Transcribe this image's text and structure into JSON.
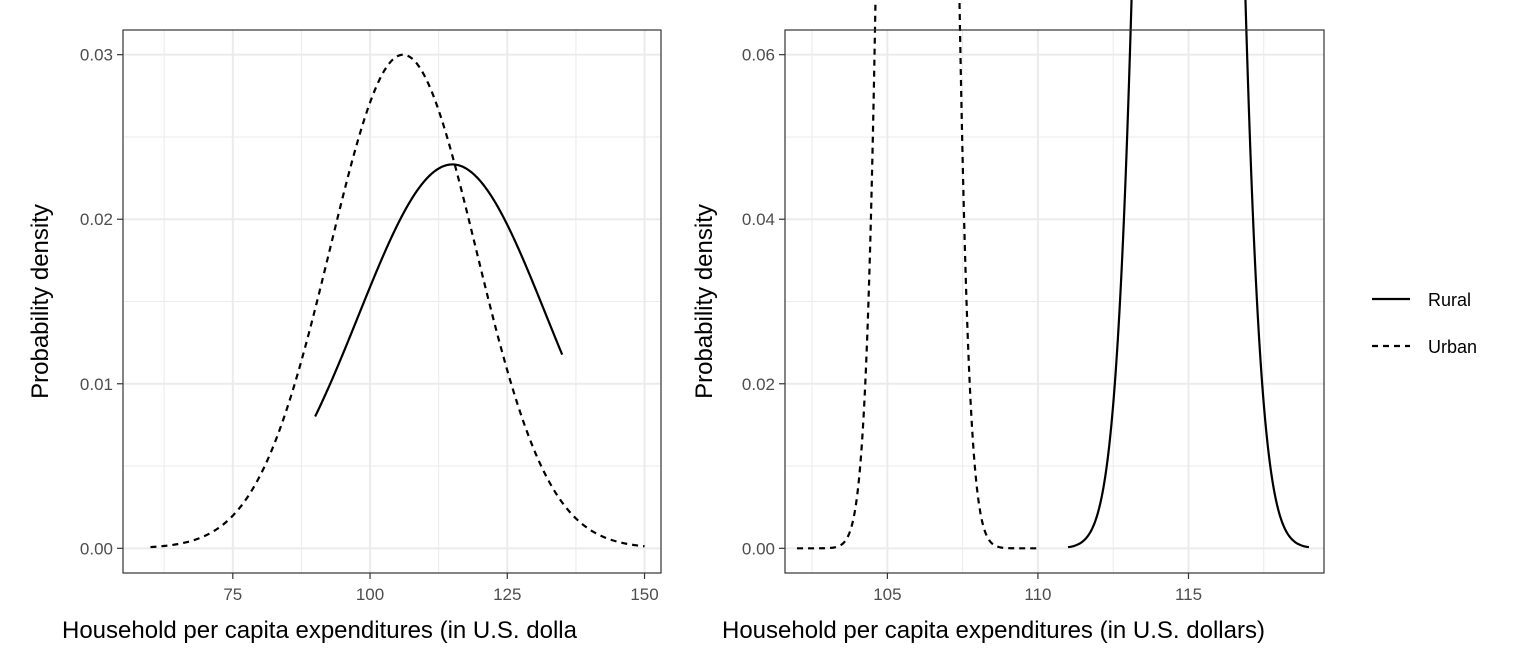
{
  "chart_data": [
    {
      "type": "line",
      "title": "",
      "xlabel": "Household per capita expenditures (in U.S. dolla",
      "ylabel": "Probability density",
      "xlim": [
        55,
        153
      ],
      "ylim": [
        -0.0015,
        0.0315
      ],
      "xticks": [
        "75",
        "100",
        "125",
        "150"
      ],
      "xtick_values": [
        75,
        100,
        125,
        150
      ],
      "yticks": [
        "0.00",
        "0.01",
        "0.02",
        "0.03"
      ],
      "ytick_values": [
        0,
        0.01,
        0.02,
        0.03
      ],
      "grid": true,
      "series": [
        {
          "name": "Rural",
          "linetype": "solid",
          "distribution": "normal",
          "mean": 115,
          "sd": 17.1,
          "x_range": [
            90,
            135
          ]
        },
        {
          "name": "Urban",
          "linetype": "dashed",
          "distribution": "normal",
          "mean": 106,
          "sd": 13.3,
          "x_range": [
            60,
            150
          ]
        }
      ]
    },
    {
      "type": "line",
      "title": "",
      "xlabel": "Household per capita expenditures (in U.S. dollars)",
      "ylabel": "Probability density",
      "xlim": [
        101.6,
        119.5
      ],
      "ylim": [
        -0.003,
        0.063
      ],
      "xticks": [
        "105",
        "110",
        "115"
      ],
      "xtick_values": [
        105,
        110,
        115
      ],
      "yticks": [
        "0.00",
        "0.02",
        "0.04",
        "0.06"
      ],
      "ytick_values": [
        0,
        0.02,
        0.04,
        0.06
      ],
      "grid": true,
      "series": [
        {
          "name": "Rural",
          "linetype": "solid",
          "distribution": "normal",
          "mean": 115,
          "sd": 1.0,
          "x_range": [
            111,
            119
          ]
        },
        {
          "name": "Urban",
          "linetype": "dashed",
          "distribution": "normal",
          "mean": 106,
          "sd": 0.665,
          "x_range": [
            102,
            110
          ]
        }
      ]
    }
  ],
  "legend": {
    "position": "right",
    "entries": [
      {
        "label": "Rural",
        "linetype": "solid"
      },
      {
        "label": "Urban",
        "linetype": "dashed"
      }
    ]
  }
}
